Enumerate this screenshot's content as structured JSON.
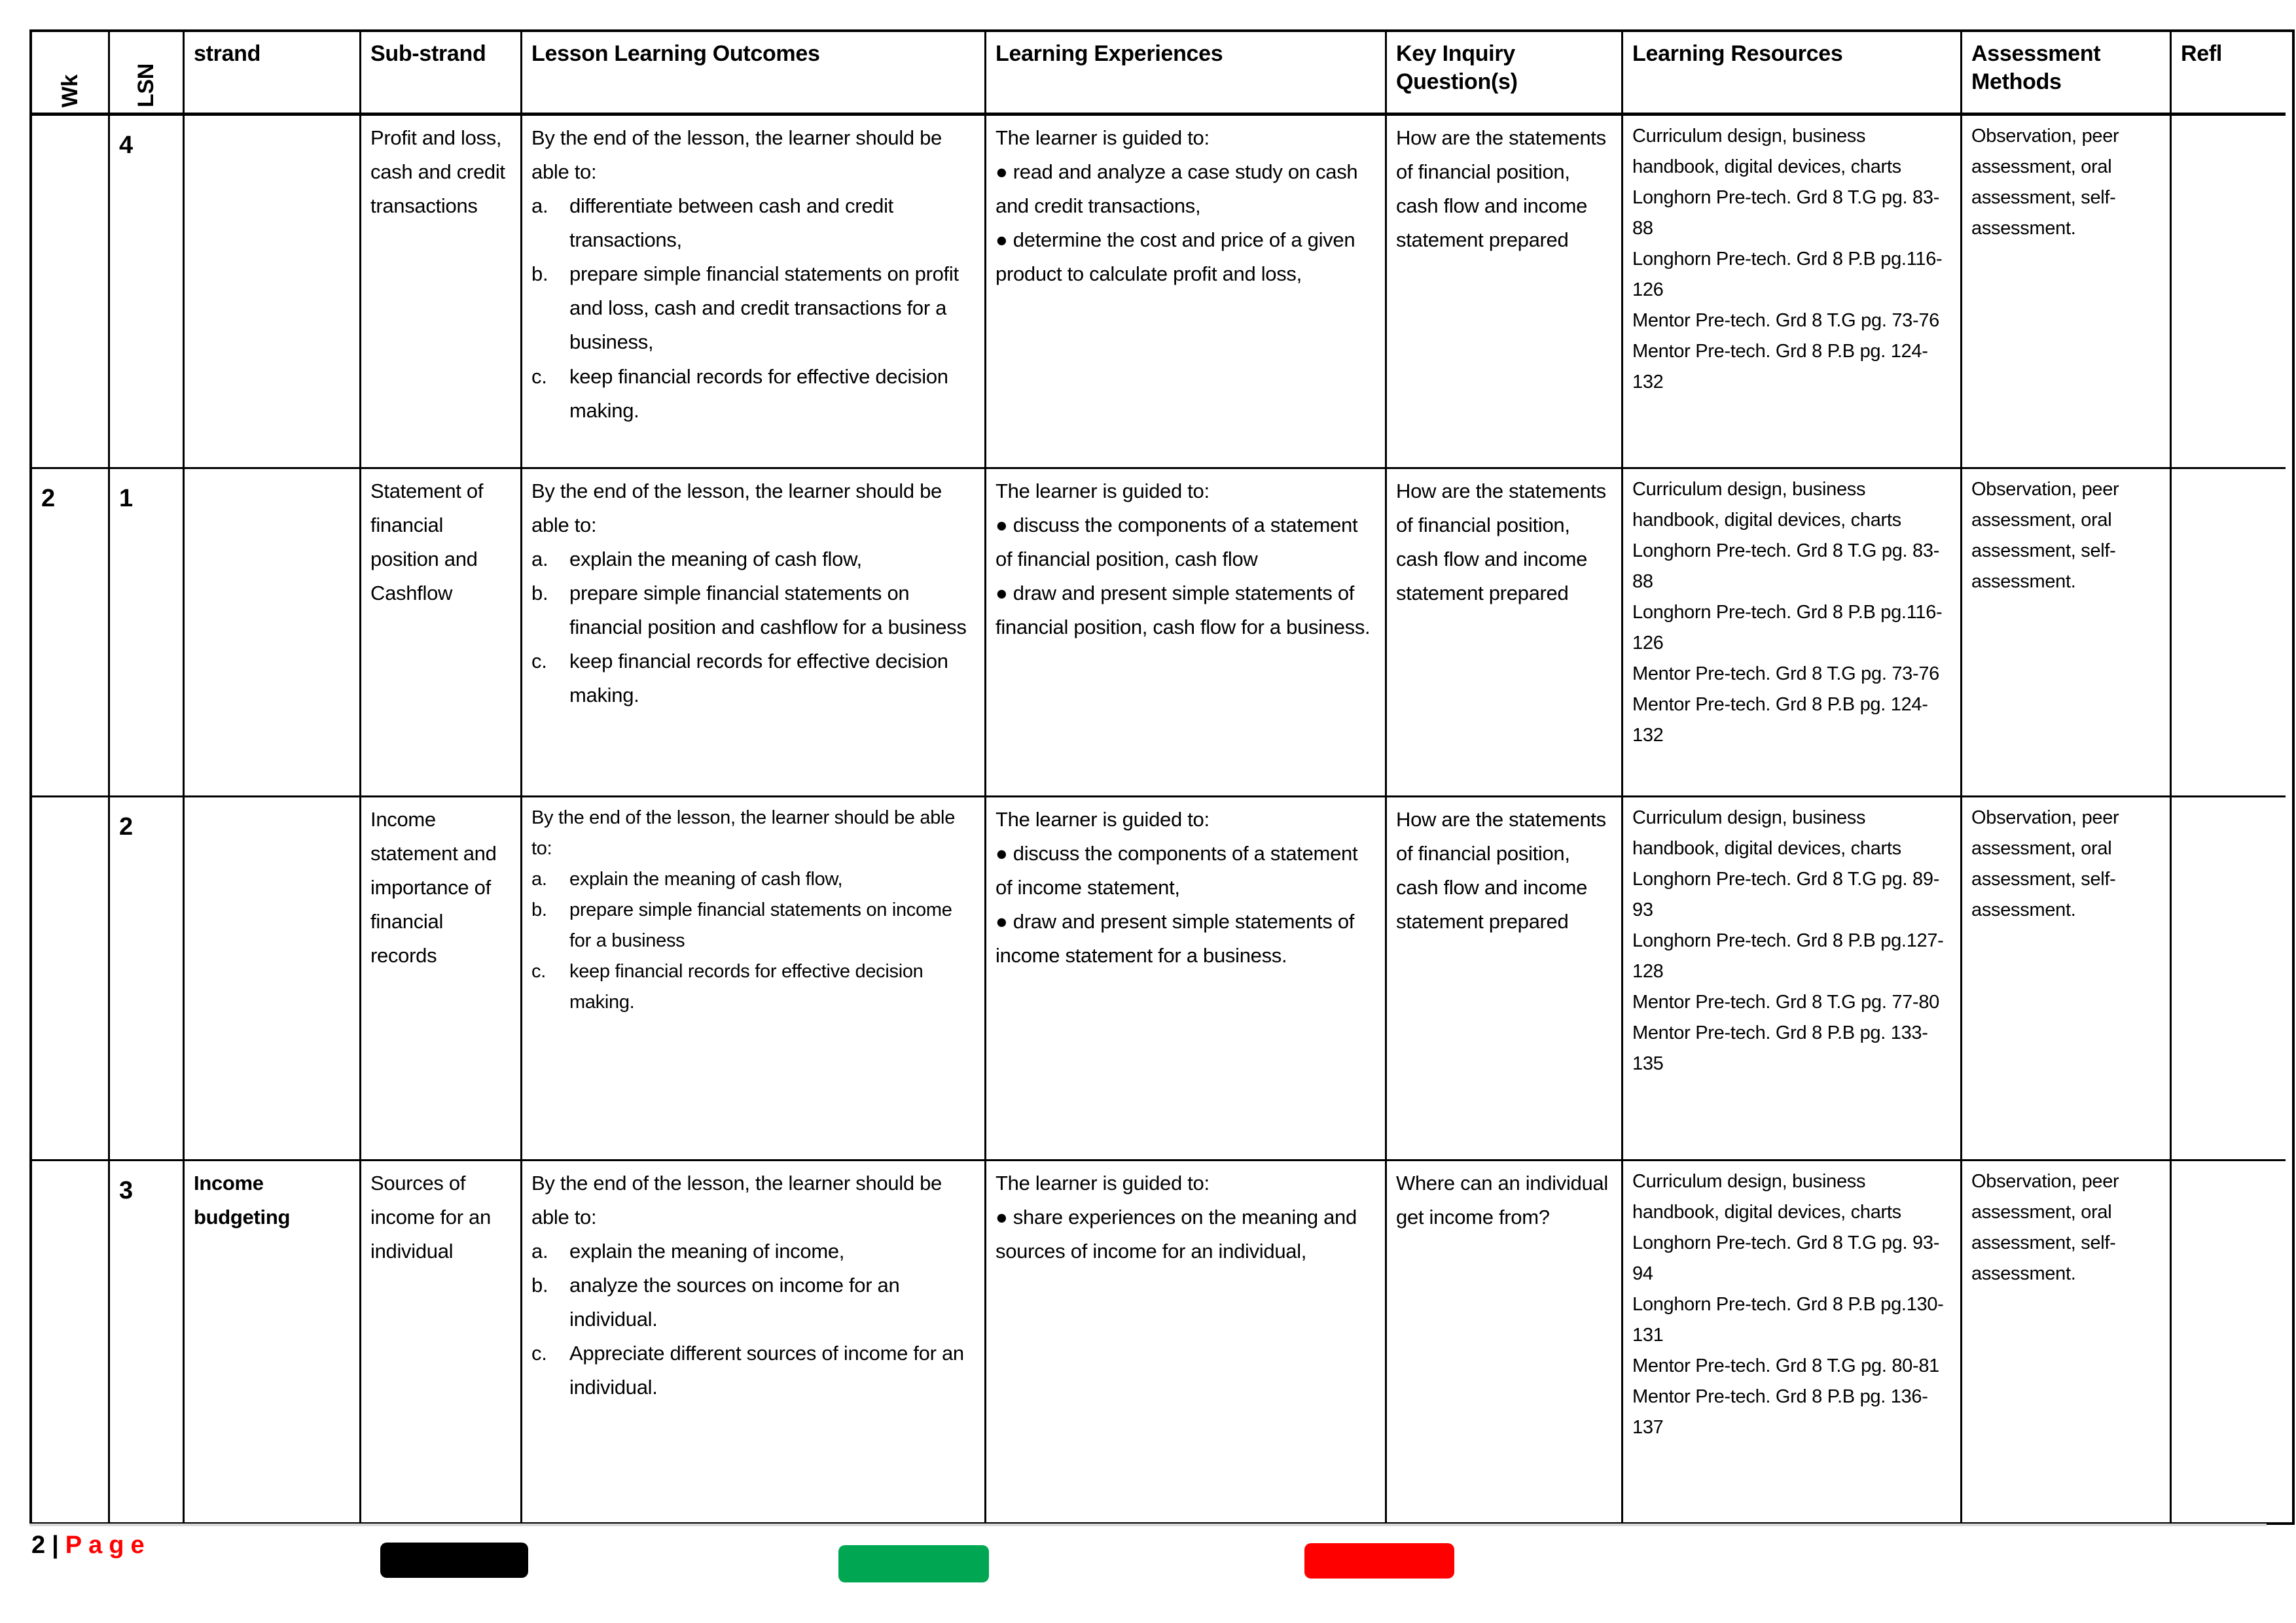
{
  "header": {
    "wk": "Wk",
    "lsn": "LSN",
    "strand": "strand",
    "sub_strand": "Sub-strand",
    "outcomes": "Lesson Learning Outcomes",
    "experiences": "Learning Experiences",
    "key_inquiry": "Key Inquiry Question(s)",
    "resources": "Learning Resources",
    "assessment": "Assessment Methods",
    "refl": "Refl"
  },
  "rows": [
    {
      "wk": "",
      "lsn": "4",
      "strand": "",
      "sub_strand": "Profit and loss, cash and credit transactions",
      "outcomes_intro": "By the end of the lesson, the learner should be able to:",
      "outcomes": [
        {
          "label": "a.",
          "text": "differentiate between cash and credit transactions,"
        },
        {
          "label": "b.",
          "text": "prepare simple financial statements on profit and loss, cash and credit transactions for a business,"
        },
        {
          "label": "c.",
          "text": "keep financial records for effective decision making."
        }
      ],
      "experiences_intro": "The learner is guided to:",
      "experiences": [
        "read and analyze a case study on cash and credit transactions,",
        "determine the cost and price of a given product to calculate profit and loss,"
      ],
      "key_inquiry": "How are the statements of financial position, cash flow and income statement prepared",
      "resources": [
        "Curriculum design, business handbook, digital devices, charts",
        "Longhorn Pre-tech. Grd 8 T.G pg. 83-88",
        "Longhorn Pre-tech. Grd 8 P.B pg.116-126",
        "Mentor Pre-tech. Grd 8 T.G pg. 73-76",
        "Mentor Pre-tech. Grd 8 P.B pg. 124-132"
      ],
      "assessment": "Observation, peer assessment, oral assessment, self-assessment.",
      "refl": ""
    },
    {
      "wk": "2",
      "lsn": "1",
      "strand": "",
      "sub_strand": "Statement of financial position and Cashflow",
      "outcomes_intro": "By the end of the lesson, the learner should be able to:",
      "outcomes": [
        {
          "label": "a.",
          "text": "explain the meaning of cash flow,"
        },
        {
          "label": "b.",
          "text": "prepare simple financial statements on financial position and cashflow for a business"
        },
        {
          "label": "c.",
          "text": "keep financial records for effective decision making."
        }
      ],
      "experiences_intro": "The learner is guided to:",
      "experiences": [
        "discuss the components of a statement of financial position, cash flow",
        "draw and present simple statements of financial position, cash flow for a business."
      ],
      "key_inquiry": "How are the statements of financial position, cash flow and income statement prepared",
      "resources": [
        "Curriculum design, business handbook, digital devices, charts",
        "Longhorn Pre-tech. Grd 8 T.G pg. 83-88",
        "Longhorn Pre-tech. Grd 8 P.B pg.116-126",
        "Mentor Pre-tech. Grd 8 T.G pg. 73-76",
        "Mentor Pre-tech. Grd 8 P.B pg. 124-132"
      ],
      "assessment": "Observation, peer assessment, oral assessment, self-assessment.",
      "refl": ""
    },
    {
      "wk": "",
      "lsn": "2",
      "strand": "",
      "sub_strand": "Income statement and importance of financial records",
      "outcomes_intro": "By the end of the lesson, the learner should be able to:",
      "outcomes": [
        {
          "label": "a.",
          "text": "explain the meaning of cash flow,"
        },
        {
          "label": "b.",
          "text": "prepare simple financial statements on income for a business"
        },
        {
          "label": "c.",
          "text": "keep financial records for effective decision making."
        }
      ],
      "experiences_intro": "The learner is guided to:",
      "experiences": [
        "discuss the components of a statement of income statement,",
        "draw and present simple statements of income statement for a business."
      ],
      "key_inquiry": "How are the statements of financial position, cash flow and income statement prepared",
      "resources": [
        "Curriculum design, business handbook, digital devices, charts",
        "Longhorn Pre-tech. Grd 8 T.G pg. 89-93",
        "Longhorn Pre-tech. Grd 8 P.B pg.127-128",
        "Mentor Pre-tech. Grd 8 T.G pg. 77-80",
        "Mentor Pre-tech. Grd 8 P.B pg. 133-135"
      ],
      "assessment": "Observation, peer assessment, oral assessment, self-assessment.",
      "refl": ""
    },
    {
      "wk": "",
      "lsn": "3",
      "strand": "Income budgeting",
      "sub_strand": "Sources of income for an individual",
      "outcomes_intro": "By the end of the lesson, the learner should be able to:",
      "outcomes": [
        {
          "label": "a.",
          "text": "explain the meaning of income,"
        },
        {
          "label": "b.",
          "text": "analyze the sources on income for an individual."
        },
        {
          "label": "c.",
          "text": "Appreciate different sources of income for an individual."
        }
      ],
      "experiences_intro": "The learner is guided to:",
      "experiences": [
        "share experiences on the meaning and sources of income for an individual,"
      ],
      "key_inquiry": "Where can an individual get income from?",
      "resources": [
        "Curriculum design, business handbook, digital devices, charts",
        "Longhorn Pre-tech. Grd 8 T.G pg. 93-94",
        "Longhorn Pre-tech. Grd 8 P.B pg.130-131",
        "Mentor Pre-tech. Grd 8 T.G pg. 80-81",
        "Mentor Pre-tech. Grd 8 P.B pg. 136-137"
      ],
      "assessment": "Observation, peer assessment, oral assessment, self-assessment.",
      "refl": ""
    }
  ],
  "footer": {
    "page_number": "2",
    "separator": "|",
    "page_label": "Page",
    "bar_colors": {
      "bar1": "#000000",
      "bar2": "#00a651",
      "bar3": "#ff0000"
    }
  }
}
